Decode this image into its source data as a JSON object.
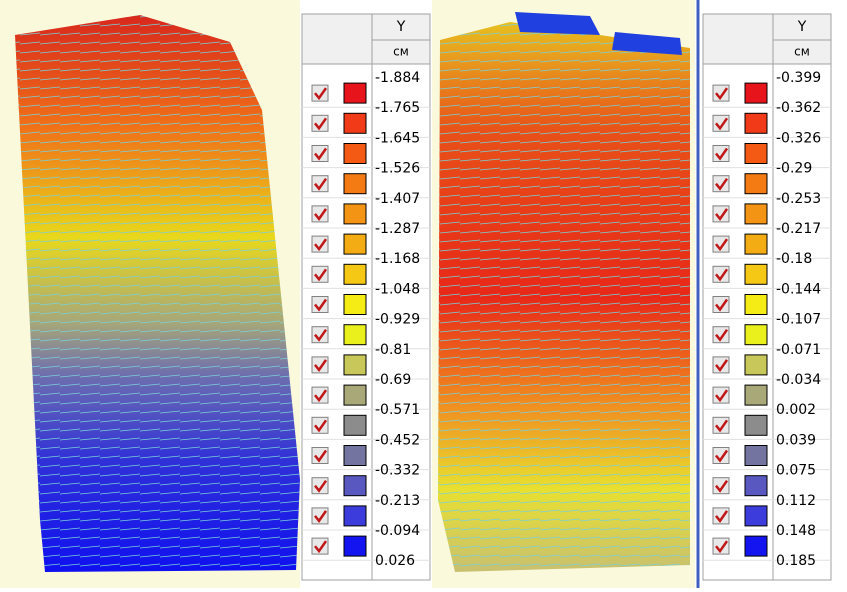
{
  "colors": [
    "#e8141c",
    "#f03a18",
    "#f45a14",
    "#f47a14",
    "#f49414",
    "#f4ac14",
    "#f4c814",
    "#f4ec14",
    "#eaf01c",
    "#c8c85a",
    "#a8a878",
    "#8c8c8c",
    "#7474a0",
    "#5858c0",
    "#3c3cdc",
    "#1414f0"
  ],
  "legends": [
    {
      "header": "Y",
      "unit": "см",
      "values": [
        -1.884,
        -1.765,
        -1.645,
        -1.526,
        -1.407,
        -1.287,
        -1.168,
        -1.048,
        -0.929,
        -0.81,
        -0.69,
        -0.571,
        -0.452,
        -0.332,
        -0.213,
        -0.094,
        0.026
      ]
    },
    {
      "header": "Y",
      "unit": "см",
      "values": [
        -0.399,
        -0.362,
        -0.326,
        -0.29,
        -0.253,
        -0.217,
        -0.18,
        -0.144,
        -0.107,
        -0.071,
        -0.034,
        0.002,
        0.039,
        0.075,
        0.112,
        0.148,
        0.185
      ]
    }
  ]
}
